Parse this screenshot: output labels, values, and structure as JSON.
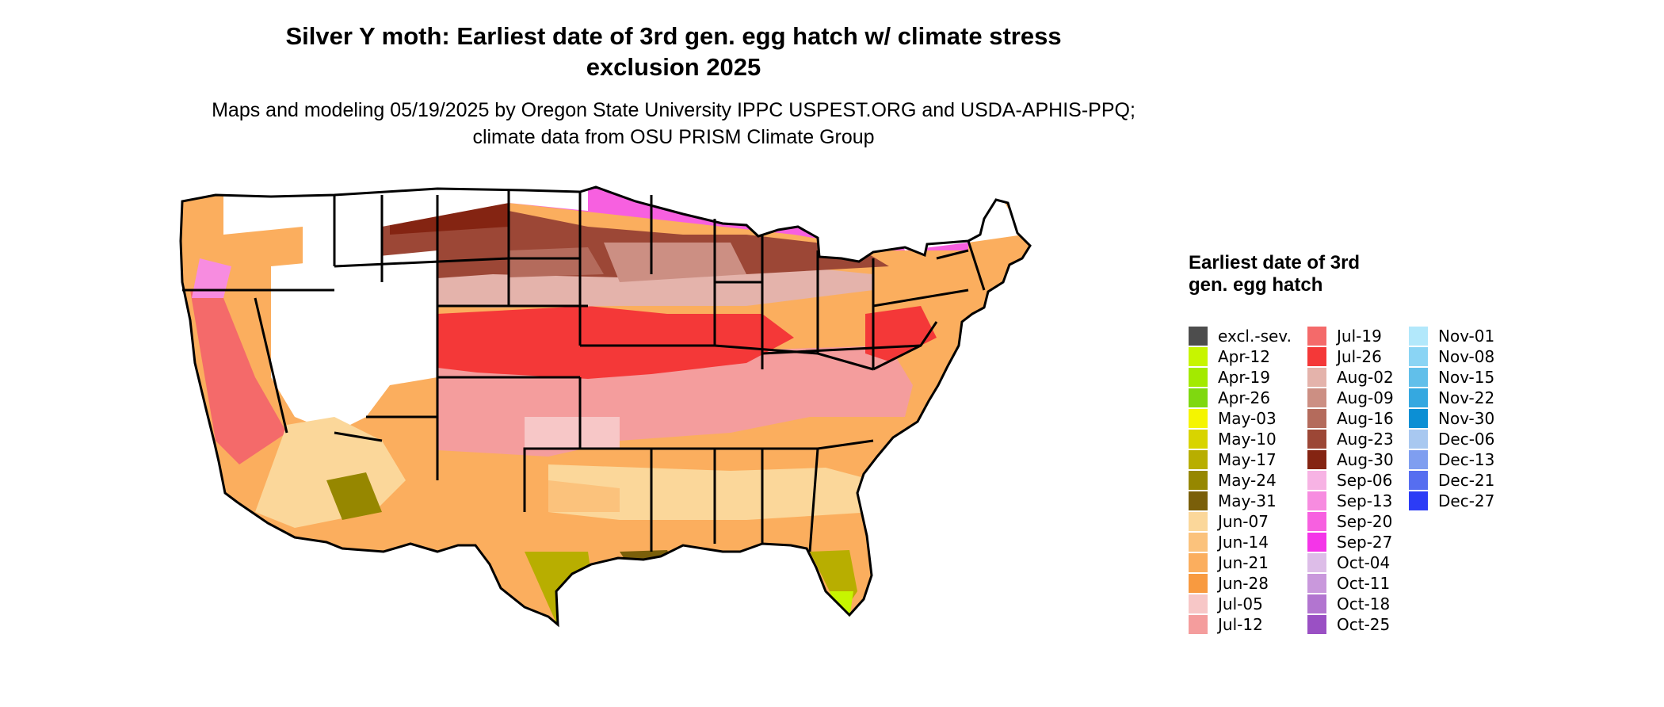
{
  "map": {
    "title": "Silver Y moth: Earliest date of 3rd gen. egg hatch w/ climate stress exclusion 2025",
    "subtitle": "Maps and modeling 05/19/2025 by Oregon State University IPPC USPEST.ORG and USDA-APHIS-PPQ; climate data from OSU PRISM Climate Group",
    "region_icon": "usa-states-map",
    "legend": {
      "title": "Earliest date of 3rd gen. egg hatch",
      "columns": [
        [
          {
            "label": "excl.-sev.",
            "color": "#4d4d4d"
          },
          {
            "label": "Apr-12",
            "color": "#c7f500"
          },
          {
            "label": "Apr-19",
            "color": "#a3ea00"
          },
          {
            "label": "Apr-26",
            "color": "#7fd810"
          },
          {
            "label": "May-03",
            "color": "#f5f500"
          },
          {
            "label": "May-10",
            "color": "#d8d400"
          },
          {
            "label": "May-17",
            "color": "#b8ae00"
          },
          {
            "label": "May-24",
            "color": "#968700"
          },
          {
            "label": "May-31",
            "color": "#7a5f0a"
          },
          {
            "label": "Jun-07",
            "color": "#fbd79a"
          },
          {
            "label": "Jun-14",
            "color": "#fbc27c"
          },
          {
            "label": "Jun-21",
            "color": "#fbae5e"
          },
          {
            "label": "Jun-28",
            "color": "#f89a40"
          },
          {
            "label": "Jul-05",
            "color": "#f7c7c7"
          },
          {
            "label": "Jul-12",
            "color": "#f49d9d"
          }
        ],
        [
          {
            "label": "Jul-19",
            "color": "#f46a6a"
          },
          {
            "label": "Jul-26",
            "color": "#f43838"
          },
          {
            "label": "Aug-02",
            "color": "#e4b3ab"
          },
          {
            "label": "Aug-09",
            "color": "#cc8f83"
          },
          {
            "label": "Aug-16",
            "color": "#b46b5c"
          },
          {
            "label": "Aug-23",
            "color": "#9c4736"
          },
          {
            "label": "Aug-30",
            "color": "#842412"
          },
          {
            "label": "Sep-06",
            "color": "#f7b3e4"
          },
          {
            "label": "Sep-13",
            "color": "#f78ce0"
          },
          {
            "label": "Sep-20",
            "color": "#f760e0"
          },
          {
            "label": "Sep-27",
            "color": "#f435e8"
          },
          {
            "label": "Oct-04",
            "color": "#ddbde8"
          },
          {
            "label": "Oct-11",
            "color": "#c998dc"
          },
          {
            "label": "Oct-18",
            "color": "#b275d0"
          },
          {
            "label": "Oct-25",
            "color": "#9a50c4"
          }
        ],
        [
          {
            "label": "Nov-01",
            "color": "#b2e8fb"
          },
          {
            "label": "Nov-08",
            "color": "#8ad4f4"
          },
          {
            "label": "Nov-15",
            "color": "#61bfea"
          },
          {
            "label": "Nov-22",
            "color": "#35a8e0"
          },
          {
            "label": "Nov-30",
            "color": "#0c8fd4"
          },
          {
            "label": "Dec-06",
            "color": "#a8c8f0"
          },
          {
            "label": "Dec-13",
            "color": "#7f9ef0"
          },
          {
            "label": "Dec-21",
            "color": "#566ef0"
          },
          {
            "label": "Dec-27",
            "color": "#2c3cf6"
          }
        ]
      ]
    }
  }
}
